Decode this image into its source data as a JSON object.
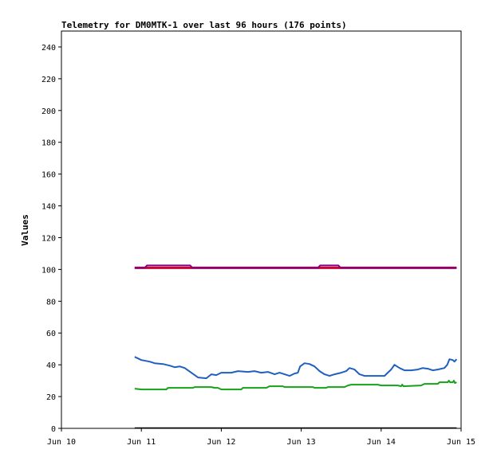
{
  "chart_data": {
    "type": "line",
    "title": "Telemetry for DM0MTK-1 over last 96 hours (176 points)",
    "ylabel": "Values",
    "xlabel": "",
    "xlim": [
      "2024-06-10T00:00",
      "2024-06-15T00:00"
    ],
    "ylim": [
      0,
      250
    ],
    "x_ticks": [
      {
        "x": "2024-06-10T00:00",
        "label": "Jun 10"
      },
      {
        "x": "2024-06-11T00:00",
        "label": "Jun 11"
      },
      {
        "x": "2024-06-12T00:00",
        "label": "Jun 12"
      },
      {
        "x": "2024-06-13T00:00",
        "label": "Jun 13"
      },
      {
        "x": "2024-06-14T00:00",
        "label": "Jun 14"
      },
      {
        "x": "2024-06-15T00:00",
        "label": "Jun 15"
      }
    ],
    "y_ticks": [
      0,
      20,
      40,
      60,
      80,
      100,
      120,
      140,
      160,
      180,
      200,
      220,
      240
    ],
    "grid": false,
    "legend": "none",
    "series": [
      {
        "color": "#cc0033",
        "width": 3,
        "points": [
          [
            "2024-06-10T22:00",
            101
          ],
          [
            "2024-06-14T22:40",
            101
          ]
        ]
      },
      {
        "color": "#800080",
        "width": 2,
        "points": [
          [
            "2024-06-10T22:00",
            101
          ],
          [
            "2024-06-11T01:00",
            101
          ],
          [
            "2024-06-11T01:40",
            102.5
          ],
          [
            "2024-06-11T14:40",
            102.5
          ],
          [
            "2024-06-11T15:20",
            101
          ],
          [
            "2024-06-13T05:00",
            101
          ],
          [
            "2024-06-13T05:40",
            102.5
          ],
          [
            "2024-06-13T11:10",
            102.5
          ],
          [
            "2024-06-13T11:50",
            101
          ],
          [
            "2024-06-14T22:40",
            101
          ]
        ]
      },
      {
        "color": "#1f5fbf",
        "width": 2,
        "points": [
          [
            "2024-06-10T22:00",
            45
          ],
          [
            "2024-06-11T00:00",
            43
          ],
          [
            "2024-06-11T02:30",
            42
          ],
          [
            "2024-06-11T04:00",
            41
          ],
          [
            "2024-06-11T06:30",
            40.5
          ],
          [
            "2024-06-11T08:30",
            39.5
          ],
          [
            "2024-06-11T10:00",
            38.5
          ],
          [
            "2024-06-11T11:30",
            39
          ],
          [
            "2024-06-11T13:00",
            38
          ],
          [
            "2024-06-11T15:00",
            35
          ],
          [
            "2024-06-11T17:00",
            32
          ],
          [
            "2024-06-11T19:30",
            31.5
          ],
          [
            "2024-06-11T21:00",
            34
          ],
          [
            "2024-06-11T22:30",
            33.5
          ],
          [
            "2024-06-12T00:00",
            35
          ],
          [
            "2024-06-12T03:00",
            35
          ],
          [
            "2024-06-12T05:00",
            36
          ],
          [
            "2024-06-12T08:00",
            35.5
          ],
          [
            "2024-06-12T10:00",
            36
          ],
          [
            "2024-06-12T12:00",
            35
          ],
          [
            "2024-06-12T14:00",
            35.5
          ],
          [
            "2024-06-12T16:00",
            34
          ],
          [
            "2024-06-12T17:30",
            35
          ],
          [
            "2024-06-12T19:00",
            34
          ],
          [
            "2024-06-12T20:30",
            33
          ],
          [
            "2024-06-12T22:00",
            34.5
          ],
          [
            "2024-06-12T23:00",
            35
          ],
          [
            "2024-06-12T23:40",
            39
          ],
          [
            "2024-06-13T01:00",
            41
          ],
          [
            "2024-06-13T02:30",
            40.5
          ],
          [
            "2024-06-13T04:00",
            39
          ],
          [
            "2024-06-13T05:30",
            36
          ],
          [
            "2024-06-13T07:00",
            34
          ],
          [
            "2024-06-13T08:30",
            33
          ],
          [
            "2024-06-13T10:00",
            34
          ],
          [
            "2024-06-13T12:00",
            35
          ],
          [
            "2024-06-13T13:30",
            36
          ],
          [
            "2024-06-13T14:30",
            38
          ],
          [
            "2024-06-13T16:00",
            37
          ],
          [
            "2024-06-13T17:30",
            34
          ],
          [
            "2024-06-13T19:00",
            33
          ],
          [
            "2024-06-13T22:00",
            33
          ],
          [
            "2024-06-14T01:00",
            33
          ],
          [
            "2024-06-14T02:00",
            35
          ],
          [
            "2024-06-14T03:00",
            37
          ],
          [
            "2024-06-14T04:00",
            40
          ],
          [
            "2024-06-14T05:30",
            38
          ],
          [
            "2024-06-14T07:00",
            36.5
          ],
          [
            "2024-06-14T09:00",
            36.5
          ],
          [
            "2024-06-14T11:00",
            37
          ],
          [
            "2024-06-14T12:30",
            38
          ],
          [
            "2024-06-14T14:00",
            37.5
          ],
          [
            "2024-06-14T15:30",
            36.5
          ],
          [
            "2024-06-14T17:00",
            37
          ],
          [
            "2024-06-14T19:00",
            38
          ],
          [
            "2024-06-14T19:50",
            40
          ],
          [
            "2024-06-14T20:30",
            43.5
          ],
          [
            "2024-06-14T21:30",
            43
          ],
          [
            "2024-06-14T22:00",
            42
          ],
          [
            "2024-06-14T22:40",
            43.5
          ]
        ]
      },
      {
        "color": "#19a019",
        "width": 2,
        "points": [
          [
            "2024-06-10T22:00",
            25
          ],
          [
            "2024-06-11T00:00",
            24.5
          ],
          [
            "2024-06-11T07:30",
            24.5
          ],
          [
            "2024-06-11T08:00",
            25.5
          ],
          [
            "2024-06-11T15:30",
            25.5
          ],
          [
            "2024-06-11T16:00",
            26
          ],
          [
            "2024-06-11T21:00",
            26
          ],
          [
            "2024-06-11T22:00",
            25.5
          ],
          [
            "2024-06-11T23:00",
            25.5
          ],
          [
            "2024-06-12T00:00",
            24.5
          ],
          [
            "2024-06-12T06:00",
            24.5
          ],
          [
            "2024-06-12T06:30",
            25.5
          ],
          [
            "2024-06-12T13:30",
            25.5
          ],
          [
            "2024-06-12T14:30",
            26.5
          ],
          [
            "2024-06-12T18:30",
            26.5
          ],
          [
            "2024-06-12T19:00",
            26
          ],
          [
            "2024-06-13T03:30",
            26
          ],
          [
            "2024-06-13T04:00",
            25.5
          ],
          [
            "2024-06-13T07:30",
            25.5
          ],
          [
            "2024-06-13T08:00",
            26
          ],
          [
            "2024-06-13T13:00",
            26
          ],
          [
            "2024-06-13T14:00",
            27
          ],
          [
            "2024-06-13T15:00",
            27.5
          ],
          [
            "2024-06-13T23:00",
            27.5
          ],
          [
            "2024-06-14T00:00",
            27
          ],
          [
            "2024-06-14T05:00",
            27
          ],
          [
            "2024-06-14T06:00",
            26.5
          ],
          [
            "2024-06-14T06:20",
            27.5
          ],
          [
            "2024-06-14T06:40",
            26.5
          ],
          [
            "2024-06-14T12:00",
            27
          ],
          [
            "2024-06-14T13:00",
            28
          ],
          [
            "2024-06-14T17:00",
            28
          ],
          [
            "2024-06-14T17:30",
            29
          ],
          [
            "2024-06-14T20:00",
            29
          ],
          [
            "2024-06-14T20:20",
            30
          ],
          [
            "2024-06-14T20:40",
            29
          ],
          [
            "2024-06-14T21:30",
            29
          ],
          [
            "2024-06-14T21:50",
            30
          ],
          [
            "2024-06-14T22:10",
            28.5
          ],
          [
            "2024-06-14T22:40",
            29
          ]
        ]
      }
    ]
  }
}
